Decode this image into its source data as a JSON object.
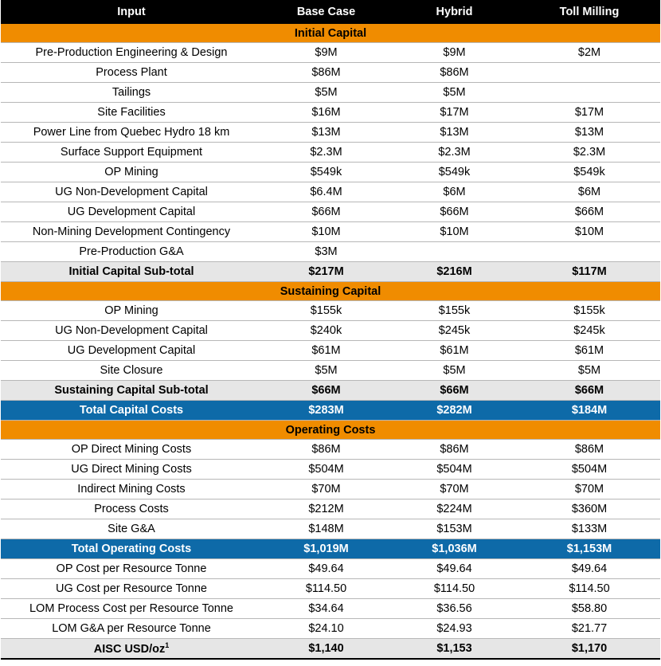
{
  "columns": [
    "Input",
    "Base Case",
    "Hybrid",
    "Toll Milling"
  ],
  "rows": [
    {
      "type": "section",
      "label": "Initial Capital"
    },
    {
      "type": "data",
      "label": "Pre-Production Engineering & Design",
      "values": [
        "$9M",
        "$9M",
        "$2M"
      ]
    },
    {
      "type": "data",
      "label": "Process Plant",
      "values": [
        "$86M",
        "$86M",
        ""
      ]
    },
    {
      "type": "data",
      "label": "Tailings",
      "values": [
        "$5M",
        "$5M",
        ""
      ]
    },
    {
      "type": "data",
      "label": "Site Facilities",
      "values": [
        "$16M",
        "$17M",
        "$17M"
      ]
    },
    {
      "type": "data",
      "label": "Power Line from Quebec Hydro 18 km",
      "values": [
        "$13M",
        "$13M",
        "$13M"
      ]
    },
    {
      "type": "data",
      "label": "Surface Support Equipment",
      "values": [
        "$2.3M",
        "$2.3M",
        "$2.3M"
      ]
    },
    {
      "type": "data",
      "label": "OP Mining",
      "values": [
        "$549k",
        "$549k",
        "$549k"
      ]
    },
    {
      "type": "data",
      "label": "UG Non-Development Capital",
      "values": [
        "$6.4M",
        "$6M",
        "$6M"
      ]
    },
    {
      "type": "data",
      "label": "UG Development Capital",
      "values": [
        "$66M",
        "$66M",
        "$66M"
      ]
    },
    {
      "type": "data",
      "label": "Non-Mining Development Contingency",
      "values": [
        "$10M",
        "$10M",
        "$10M"
      ]
    },
    {
      "type": "data",
      "label": "Pre-Production G&A",
      "values": [
        "$3M",
        "",
        ""
      ]
    },
    {
      "type": "subtotal",
      "label": "Initial Capital Sub-total",
      "values": [
        "$217M",
        "$216M",
        "$117M"
      ]
    },
    {
      "type": "section",
      "label": "Sustaining Capital"
    },
    {
      "type": "data",
      "label": "OP Mining",
      "values": [
        "$155k",
        "$155k",
        "$155k"
      ]
    },
    {
      "type": "data",
      "label": "UG Non-Development Capital",
      "values": [
        "$240k",
        "$245k",
        "$245k"
      ]
    },
    {
      "type": "data",
      "label": "UG Development Capital",
      "values": [
        "$61M",
        "$61M",
        "$61M"
      ]
    },
    {
      "type": "data",
      "label": "Site Closure",
      "values": [
        "$5M",
        "$5M",
        "$5M"
      ]
    },
    {
      "type": "subtotal",
      "label": "Sustaining Capital Sub-total",
      "values": [
        "$66M",
        "$66M",
        "$66M"
      ]
    },
    {
      "type": "total",
      "label": "Total Capital Costs",
      "values": [
        "$283M",
        "$282M",
        "$184M"
      ]
    },
    {
      "type": "section",
      "label": "Operating Costs"
    },
    {
      "type": "data",
      "label": "OP Direct Mining Costs",
      "values": [
        "$86M",
        "$86M",
        "$86M"
      ]
    },
    {
      "type": "data",
      "label": "UG Direct Mining Costs",
      "values": [
        "$504M",
        "$504M",
        "$504M"
      ]
    },
    {
      "type": "data",
      "label": "Indirect Mining Costs",
      "values": [
        "$70M",
        "$70M",
        "$70M"
      ]
    },
    {
      "type": "data",
      "label": "Process Costs",
      "values": [
        "$212M",
        "$224M",
        "$360M"
      ]
    },
    {
      "type": "data",
      "label": "Site G&A",
      "values": [
        "$148M",
        "$153M",
        "$133M"
      ]
    },
    {
      "type": "total",
      "label": "Total Operating Costs",
      "values": [
        "$1,019M",
        "$1,036M",
        "$1,153M"
      ]
    },
    {
      "type": "data",
      "label": "OP Cost per Resource Tonne",
      "values": [
        "$49.64",
        "$49.64",
        "$49.64"
      ]
    },
    {
      "type": "data",
      "label": "UG Cost per Resource Tonne",
      "values": [
        "$114.50",
        "$114.50",
        "$114.50"
      ]
    },
    {
      "type": "data",
      "label": "LOM Process Cost per Resource Tonne",
      "values": [
        "$34.64",
        "$36.56",
        "$58.80"
      ]
    },
    {
      "type": "data",
      "label": "LOM G&A per Resource Tonne",
      "values": [
        "$24.10",
        "$24.93",
        "$21.77"
      ]
    },
    {
      "type": "aisc",
      "label": "AISC USD/oz",
      "footnote": "1",
      "values": [
        "$1,140",
        "$1,153",
        "$1,170"
      ]
    }
  ]
}
